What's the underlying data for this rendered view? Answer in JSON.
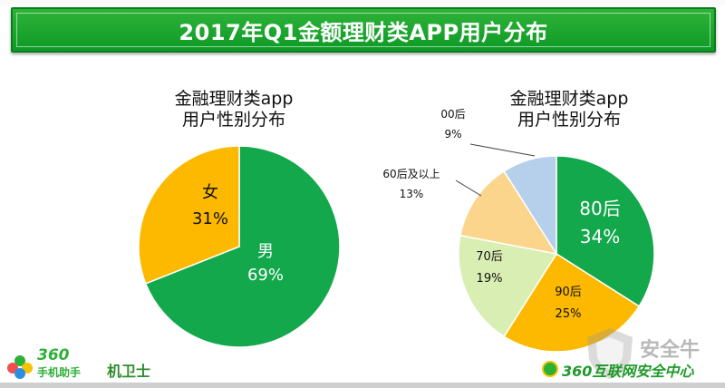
{
  "header": {
    "title": "2017年Q1金额理财类APP用户分布"
  },
  "chart_data": [
    {
      "type": "pie",
      "title_line1": "金融理财类app",
      "title_line2": "用户性别分布",
      "slices": [
        {
          "label": "男",
          "value": 69,
          "display": "69%",
          "color": "#12a84b",
          "label_color": "#ffffff"
        },
        {
          "label": "女",
          "value": 31,
          "display": "31%",
          "color": "#fcb900",
          "label_color": "#111111"
        }
      ]
    },
    {
      "type": "pie",
      "title_line1": "金融理财类app",
      "title_line2": "用户性别分布",
      "slices": [
        {
          "label": "80后",
          "value": 34,
          "display": "34%",
          "color": "#12a84b",
          "label_color": "#ffffff"
        },
        {
          "label": "90后",
          "value": 25,
          "display": "25%",
          "color": "#fcb900",
          "label_color": "#111111"
        },
        {
          "label": "70后",
          "value": 19,
          "display": "19%",
          "color": "#d9eeb3",
          "label_color": "#111111"
        },
        {
          "label": "60后及以上",
          "value": 13,
          "display": "13%",
          "color": "#fad58b",
          "label_color": "#111111"
        },
        {
          "label": "00后",
          "value": 9,
          "display": "9%",
          "color": "#b6cfea",
          "label_color": "#111111"
        }
      ]
    }
  ],
  "footer": {
    "logo_number": "360",
    "logo_sub": "手机助手",
    "logo_partner": "机卫士",
    "security_center": "360互联网安全中心",
    "watermark": "安全牛"
  }
}
